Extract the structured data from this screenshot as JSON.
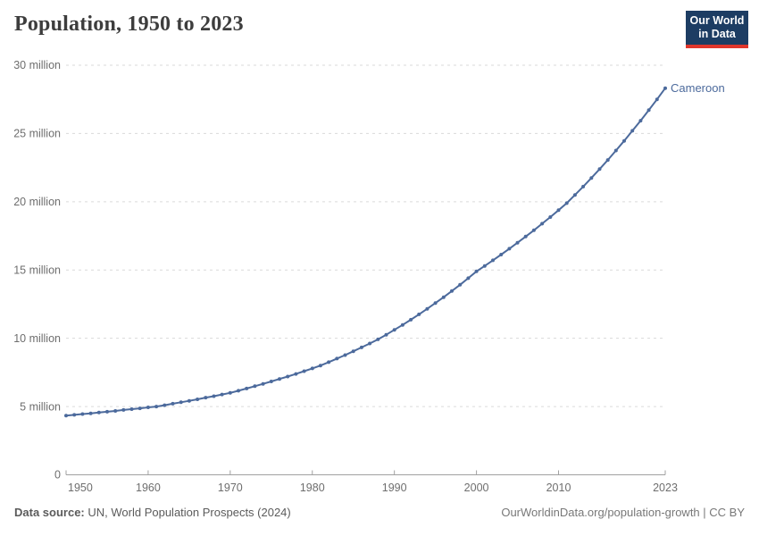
{
  "header": {
    "title": "Population, 1950 to 2023",
    "logo": {
      "line1": "Our World",
      "line2": "in Data",
      "bg_color": "#1d3d63",
      "accent_color": "#e0362c"
    }
  },
  "footer": {
    "source_label": "Data source:",
    "source_text": "UN, World Population Prospects (2024)",
    "credit_text": "OurWorldinData.org/population-growth | CC BY"
  },
  "chart_data": {
    "type": "line",
    "title": "Population, 1950 to 2023",
    "xlabel": "",
    "ylabel": "",
    "xlim": [
      1950,
      2023
    ],
    "ylim": [
      0,
      30
    ],
    "grid": true,
    "legend_position": "end-of-line",
    "colors": {
      "line": "#4c6a9c",
      "grid": "#dadada",
      "axis": "#a1a1a1",
      "tick_text": "#6e6e6e"
    },
    "y_ticks": [
      {
        "value": 0,
        "label": "0"
      },
      {
        "value": 5,
        "label": "5 million"
      },
      {
        "value": 10,
        "label": "10 million"
      },
      {
        "value": 15,
        "label": "15 million"
      },
      {
        "value": 20,
        "label": "20 million"
      },
      {
        "value": 25,
        "label": "25 million"
      },
      {
        "value": 30,
        "label": "30 million"
      }
    ],
    "x_ticks": [
      {
        "value": 1950,
        "label": "1950"
      },
      {
        "value": 1960,
        "label": "1960"
      },
      {
        "value": 1970,
        "label": "1970"
      },
      {
        "value": 1980,
        "label": "1980"
      },
      {
        "value": 1990,
        "label": "1990"
      },
      {
        "value": 2000,
        "label": "2000"
      },
      {
        "value": 2010,
        "label": "2010"
      },
      {
        "value": 2023,
        "label": "2023"
      }
    ],
    "unit": "million",
    "series": [
      {
        "name": "Cameroon",
        "color": "#4c6a9c",
        "x": [
          1950,
          1951,
          1952,
          1953,
          1954,
          1955,
          1956,
          1957,
          1958,
          1959,
          1960,
          1961,
          1962,
          1963,
          1964,
          1965,
          1966,
          1967,
          1968,
          1969,
          1970,
          1971,
          1972,
          1973,
          1974,
          1975,
          1976,
          1977,
          1978,
          1979,
          1980,
          1981,
          1982,
          1983,
          1984,
          1985,
          1986,
          1987,
          1988,
          1989,
          1990,
          1991,
          1992,
          1993,
          1994,
          1995,
          1996,
          1997,
          1998,
          1999,
          2000,
          2001,
          2002,
          2003,
          2004,
          2005,
          2006,
          2007,
          2008,
          2009,
          2010,
          2011,
          2012,
          2013,
          2014,
          2015,
          2016,
          2017,
          2018,
          2019,
          2020,
          2021,
          2022,
          2023
        ],
        "values": [
          4.33,
          4.39,
          4.45,
          4.5,
          4.56,
          4.62,
          4.68,
          4.75,
          4.81,
          4.87,
          4.94,
          5.0,
          5.1,
          5.21,
          5.31,
          5.42,
          5.53,
          5.65,
          5.76,
          5.88,
          6.0,
          6.16,
          6.32,
          6.49,
          6.66,
          6.84,
          7.02,
          7.2,
          7.39,
          7.59,
          7.79,
          8.0,
          8.25,
          8.51,
          8.77,
          9.05,
          9.33,
          9.62,
          9.92,
          10.26,
          10.62,
          10.98,
          11.36,
          11.75,
          12.16,
          12.58,
          13.01,
          13.46,
          13.92,
          14.4,
          14.9,
          15.3,
          15.71,
          16.13,
          16.56,
          17.0,
          17.45,
          17.91,
          18.39,
          18.88,
          19.38,
          19.9,
          20.5,
          21.11,
          21.74,
          22.39,
          23.06,
          23.75,
          24.46,
          25.2,
          25.94,
          26.71,
          27.5,
          28.32
        ]
      }
    ]
  }
}
